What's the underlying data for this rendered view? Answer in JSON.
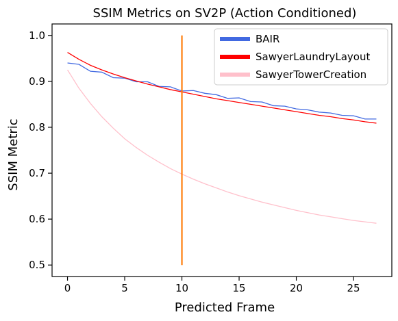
{
  "chart_data": {
    "type": "line",
    "title": "SSIM Metrics on SV2P (Action Conditioned)",
    "xlabel": "Predicted Frame",
    "ylabel": "SSIM Metric",
    "xlim": [
      -1.35,
      28.35
    ],
    "ylim": [
      0.475,
      1.025
    ],
    "xticks": [
      0,
      5,
      10,
      15,
      20,
      25
    ],
    "yticks": [
      0.5,
      0.6,
      0.7,
      0.8,
      0.9,
      1.0
    ],
    "xtick_labels": [
      "0",
      "5",
      "10",
      "15",
      "20",
      "25"
    ],
    "ytick_labels": [
      "0.5",
      "0.6",
      "0.7",
      "0.8",
      "0.9",
      "1.0"
    ],
    "grid": false,
    "legend_position": "top-right",
    "x": [
      0,
      1,
      2,
      3,
      4,
      5,
      6,
      7,
      8,
      9,
      10,
      11,
      12,
      13,
      14,
      15,
      16,
      17,
      18,
      19,
      20,
      21,
      22,
      23,
      24,
      25,
      26,
      27
    ],
    "series": [
      {
        "name": "BAIR",
        "color": "#4169e1",
        "values": [
          0.94,
          0.937,
          0.922,
          0.92,
          0.908,
          0.907,
          0.899,
          0.899,
          0.889,
          0.888,
          0.879,
          0.88,
          0.874,
          0.871,
          0.863,
          0.864,
          0.856,
          0.855,
          0.847,
          0.846,
          0.84,
          0.838,
          0.833,
          0.831,
          0.826,
          0.825,
          0.818,
          0.818
        ]
      },
      {
        "name": "SawyerLaundryLayout",
        "color": "#ff0000",
        "values": [
          0.963,
          0.948,
          0.935,
          0.925,
          0.916,
          0.908,
          0.901,
          0.894,
          0.888,
          0.882,
          0.877,
          0.872,
          0.867,
          0.862,
          0.858,
          0.854,
          0.85,
          0.846,
          0.842,
          0.838,
          0.834,
          0.83,
          0.826,
          0.823,
          0.819,
          0.816,
          0.812,
          0.809
        ]
      },
      {
        "name": "SawyerTowerCreation",
        "color": "#ffc0cb",
        "values": [
          0.925,
          0.885,
          0.852,
          0.823,
          0.798,
          0.775,
          0.756,
          0.739,
          0.724,
          0.71,
          0.698,
          0.687,
          0.677,
          0.668,
          0.659,
          0.651,
          0.644,
          0.637,
          0.631,
          0.625,
          0.619,
          0.614,
          0.609,
          0.605,
          0.601,
          0.597,
          0.594,
          0.591
        ]
      }
    ],
    "vertical_line": {
      "x": 10,
      "y_range": [
        0.5,
        1.0
      ],
      "color": "#ff7f0e"
    }
  }
}
